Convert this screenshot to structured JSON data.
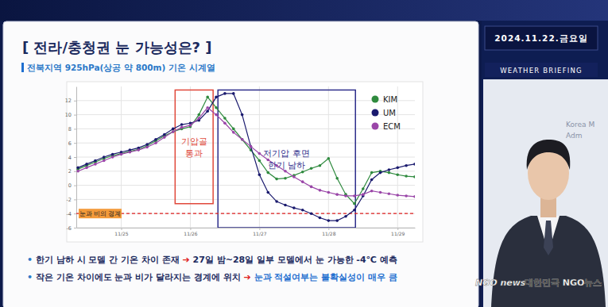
{
  "slide": {
    "title": "[ 전라/충청권 눈 가능성은? ]",
    "notes": [
      {
        "bullet": "•",
        "parts": [
          "한기 남하 시 모델 간 기온 차이 존재",
          "➔",
          "27일 밤~28일 일부 모델에서 눈 가능한 -4℃ 예측"
        ]
      },
      {
        "bullet": "•",
        "parts": [
          "작은 기온 차이에도 눈과 비가 달라지는 경계에 위치",
          "➔",
          "눈과 적설여부는 불확실성이 매우 큼"
        ]
      }
    ],
    "date": "2024.11.22.금요일",
    "banner": "WEATHER BRIEFING",
    "logo_text": [
      "Korea M",
      "Adm"
    ],
    "watermark": [
      "NGO news",
      "대한민국 NGO뉴스"
    ]
  },
  "chart_data": {
    "type": "line",
    "title": "전북지역 925hPa(상공 약 800m) 기온 시계열",
    "x": [
      24.375,
      24.5,
      24.625,
      24.75,
      24.875,
      25,
      25.125,
      25.25,
      25.375,
      25.5,
      25.625,
      25.75,
      25.875,
      26,
      26.125,
      26.25,
      26.375,
      26.5,
      26.625,
      26.75,
      26.875,
      27,
      27.125,
      27.25,
      27.375,
      27.5,
      27.625,
      27.75,
      27.875,
      28,
      28.125,
      28.25,
      28.375,
      28.5,
      28.625,
      28.75,
      28.875,
      29,
      29.125,
      29.25
    ],
    "xlim": [
      24.35,
      29.25
    ],
    "xticks": [
      {
        "value": 25,
        "label": "11/25"
      },
      {
        "value": 26,
        "label": "11/26"
      },
      {
        "value": 27,
        "label": "11/27"
      },
      {
        "value": 28,
        "label": "11/28"
      },
      {
        "value": 29,
        "label": "11/29"
      }
    ],
    "ylim": [
      -6,
      14
    ],
    "yticks": [
      -6,
      -4,
      -2,
      0,
      2,
      4,
      6,
      8,
      10,
      12
    ],
    "grid": true,
    "legend": "upper right",
    "series": [
      {
        "name": "KIM",
        "color": "#2f8a3e",
        "marker": "circle",
        "values": [
          2.3,
          2.8,
          3.3,
          3.8,
          4.2,
          4.5,
          4.8,
          5.1,
          5.6,
          6.3,
          7.0,
          7.6,
          8.0,
          8.3,
          10.0,
          12.5,
          11.0,
          9.5,
          8.0,
          6.5,
          5.0,
          3.5,
          1.8,
          0.9,
          1.0,
          1.4,
          1.9,
          2.4,
          2.8,
          3.8,
          1.0,
          -1.3,
          -2.6,
          -0.5,
          1.8,
          2.0,
          1.8,
          1.5,
          1.3,
          1.2
        ]
      },
      {
        "name": "UM",
        "color": "#1a1a6e",
        "marker": "circle",
        "values": [
          2.5,
          3.0,
          3.5,
          4.0,
          4.4,
          4.7,
          5.0,
          5.3,
          5.8,
          6.5,
          7.2,
          8.0,
          8.6,
          8.8,
          9.2,
          10.5,
          12.5,
          13.0,
          13.0,
          10.0,
          5.5,
          1.5,
          -1.0,
          -2.3,
          -2.8,
          -3.2,
          -3.5,
          -4.0,
          -4.6,
          -5.0,
          -5.0,
          -4.4,
          -3.5,
          -1.5,
          0.8,
          1.8,
          2.2,
          2.5,
          2.8,
          3.0
        ]
      },
      {
        "name": "ECM",
        "color": "#9a46a8",
        "marker": "circle",
        "values": [
          2.0,
          2.5,
          3.0,
          3.5,
          4.0,
          4.4,
          4.7,
          5.0,
          5.4,
          6.0,
          6.8,
          7.6,
          8.2,
          8.5,
          9.5,
          11.0,
          10.0,
          8.8,
          7.5,
          6.5,
          5.5,
          4.5,
          3.6,
          2.8,
          2.0,
          1.2,
          0.5,
          -0.2,
          -0.7,
          -1.0,
          -1.3,
          -1.5,
          -1.5,
          -1.3,
          -0.8,
          -1.0,
          -1.2,
          -1.4,
          -1.5,
          -1.6
        ]
      }
    ],
    "annotations": [
      {
        "type": "box",
        "text": [
          "기압골",
          "통과"
        ],
        "x": [
          25.78,
          26.33
        ],
        "y": [
          -2.6,
          13.5
        ],
        "color": "#e0483a"
      },
      {
        "type": "box",
        "text": [
          "저기압 후면",
          "한기 남하"
        ],
        "x": [
          26.4,
          28.39
        ],
        "y": [
          -6,
          13.5
        ],
        "color": "#2e2e8c"
      },
      {
        "type": "hline",
        "text": "눈과 비의 경계",
        "y": -4,
        "color": "#e02020"
      }
    ]
  }
}
